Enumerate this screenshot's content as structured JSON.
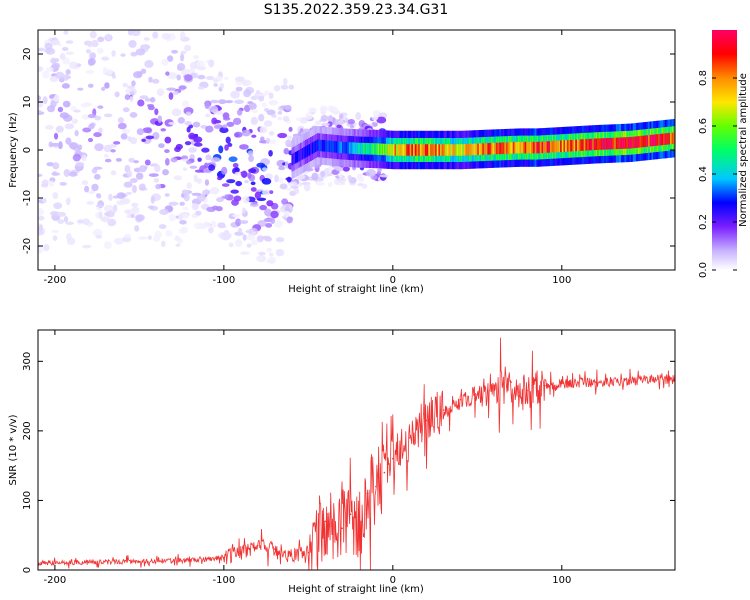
{
  "figure": {
    "title": "S135.2022.359.23.34.G31"
  },
  "chart_data": [
    {
      "type": "heatmap",
      "xlabel": "Height of straight line (km)",
      "ylabel": "Frequency (Hz)",
      "xlim": [
        -210,
        167
      ],
      "ylim": [
        -25,
        25
      ],
      "xticks": [
        -200,
        -100,
        0,
        100
      ],
      "yticks": [
        -20,
        -10,
        0,
        10,
        20
      ],
      "colorbar": {
        "label": "Normalized spectral amplitude",
        "range": [
          0.0,
          1.0
        ],
        "ticks": [
          0.0,
          0.2,
          0.4,
          0.6,
          0.8
        ],
        "tick_labels": [
          "0.0",
          "0.2",
          "0.4",
          "0.6",
          "0.8"
        ],
        "colors": [
          "#ffffff",
          "#c7b3ff",
          "#7a1fff",
          "#0000ff",
          "#00c8ff",
          "#00ff64",
          "#64ff00",
          "#ffe600",
          "#ff8c00",
          "#ff0000",
          "#ff0064"
        ]
      },
      "ridge": [
        {
          "x": -180,
          "f": 4,
          "amp": 0.12
        },
        {
          "x": -160,
          "f": 5,
          "amp": 0.15
        },
        {
          "x": -140,
          "f": 4,
          "amp": 0.18
        },
        {
          "x": -120,
          "f": 3,
          "amp": 0.22
        },
        {
          "x": -100,
          "f": -1,
          "amp": 0.3
        },
        {
          "x": -90,
          "f": -3,
          "amp": 0.32
        },
        {
          "x": -75,
          "f": -6,
          "amp": 0.3
        },
        {
          "x": -60,
          "f": -2,
          "amp": 0.25
        },
        {
          "x": -45,
          "f": 1,
          "amp": 0.3
        },
        {
          "x": -30,
          "f": 0.5,
          "amp": 0.35
        },
        {
          "x": -20,
          "f": 0.3,
          "amp": 0.45
        },
        {
          "x": -10,
          "f": 0.2,
          "amp": 0.55
        },
        {
          "x": 0,
          "f": 0,
          "amp": 0.75
        },
        {
          "x": 20,
          "f": 0,
          "amp": 0.85
        },
        {
          "x": 40,
          "f": 0,
          "amp": 0.7
        },
        {
          "x": 60,
          "f": 0.3,
          "amp": 0.85
        },
        {
          "x": 75,
          "f": 0.5,
          "amp": 0.8
        },
        {
          "x": 85,
          "f": 0.5,
          "amp": 0.9
        },
        {
          "x": 100,
          "f": 0.8,
          "amp": 0.8
        },
        {
          "x": 120,
          "f": 1.2,
          "amp": 0.9
        },
        {
          "x": 140,
          "f": 1.5,
          "amp": 0.95
        },
        {
          "x": 167,
          "f": 2.5,
          "amp": 0.9
        }
      ]
    },
    {
      "type": "line",
      "xlabel": "Height of straight line (km)",
      "ylabel": "SNR (10 * v/v)",
      "xlim": [
        -210,
        167
      ],
      "ylim": [
        0,
        345
      ],
      "xticks": [
        -200,
        -100,
        0,
        100
      ],
      "yticks": [
        0,
        100,
        200,
        300
      ],
      "color": "#f03232",
      "x": [
        -210,
        -180,
        -150,
        -120,
        -100,
        -90,
        -80,
        -70,
        -60,
        -50,
        -40,
        -30,
        -25,
        -20,
        -15,
        -10,
        -5,
        0,
        10,
        20,
        30,
        40,
        50,
        60,
        70,
        75,
        80,
        85,
        90,
        100,
        120,
        140,
        167
      ],
      "y": [
        10,
        11,
        12,
        14,
        18,
        25,
        35,
        30,
        22,
        25,
        70,
        60,
        80,
        60,
        110,
        120,
        140,
        160,
        190,
        215,
        230,
        245,
        252,
        258,
        270,
        250,
        258,
        262,
        265,
        268,
        270,
        272,
        275
      ]
    }
  ]
}
